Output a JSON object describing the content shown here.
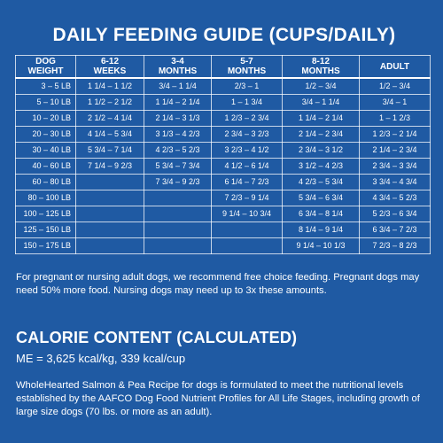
{
  "feeding_guide": {
    "title": "DAILY FEEDING GUIDE (CUPS/DAILY)",
    "headers": [
      [
        "DOG",
        "WEIGHT"
      ],
      [
        "6-12",
        "WEEKS"
      ],
      [
        "3-4",
        "MONTHS"
      ],
      [
        "5-7",
        "MONTHS"
      ],
      [
        "8-12",
        "MONTHS"
      ],
      [
        "ADULT",
        ""
      ]
    ],
    "rows": [
      [
        "3 – 5 LB",
        "1 1/4 – 1 1/2",
        "3/4 – 1 1/4",
        "2/3 – 1",
        "1/2 – 3/4",
        "1/2 – 3/4"
      ],
      [
        "5 – 10 LB",
        "1 1/2 – 2 1/2",
        "1 1/4 – 2 1/4",
        "1 – 1 3/4",
        "3/4 – 1 1/4",
        "3/4 – 1"
      ],
      [
        "10 – 20 LB",
        "2 1/2 – 4 1/4",
        "2 1/4 – 3 1/3",
        "1 2/3 – 2 3/4",
        "1 1/4 – 2 1/4",
        "1 – 1 2/3"
      ],
      [
        "20 – 30 LB",
        "4 1/4 – 5 3/4",
        "3 1/3 – 4 2/3",
        "2 3/4 – 3 2/3",
        "2 1/4 – 2 3/4",
        "1 2/3 – 2 1/4"
      ],
      [
        "30 – 40 LB",
        "5 3/4 – 7 1/4",
        "4 2/3 – 5 2/3",
        "3 2/3 – 4 1/2",
        "2 3/4 – 3 1/2",
        "2 1/4 – 2 3/4"
      ],
      [
        "40 – 60 LB",
        "7 1/4 – 9 2/3",
        "5 3/4 – 7 3/4",
        "4 1/2 – 6 1/4",
        "3 1/2 – 4 2/3",
        "2 3/4 – 3 3/4"
      ],
      [
        "60 – 80 LB",
        "",
        "7 3/4 – 9 2/3",
        "6 1/4 – 7 2/3",
        "4 2/3 – 5 3/4",
        "3 3/4 – 4 3/4"
      ],
      [
        "80 – 100 LB",
        "",
        "",
        "7 2/3 – 9 1/4",
        "5 3/4 – 6 3/4",
        "4 3/4 – 5 2/3"
      ],
      [
        "100 – 125 LB",
        "",
        "",
        "9 1/4 – 10 3/4",
        "6 3/4 – 8 1/4",
        "5 2/3 – 6 3/4"
      ],
      [
        "125 – 150 LB",
        "",
        "",
        "",
        "8 1/4 – 9 1/4",
        "6 3/4 – 7 2/3"
      ],
      [
        "150 – 175 LB",
        "",
        "",
        "",
        "9 1/4 – 10 1/3",
        "7 2/3 – 8 2/3"
      ]
    ],
    "note": "For pregnant or nursing adult dogs, we recommend free choice feeding. Pregnant dogs may need 50% more food. Nursing dogs may need up to 3x these amounts."
  },
  "calorie": {
    "title": "CALORIE CONTENT (CALCULATED)",
    "me": "ME = 3,625 kcal/kg, 339 kcal/cup",
    "description": "WholeHearted Salmon & Pea Recipe for dogs is formulated to meet the nutritional levels established by the AAFCO Dog Food Nutrient Profiles for All Life Stages, including growth of large size dogs (70 lbs. or more as an adult)."
  },
  "colors": {
    "background": "#1f5aa3",
    "text": "#ffffff"
  }
}
